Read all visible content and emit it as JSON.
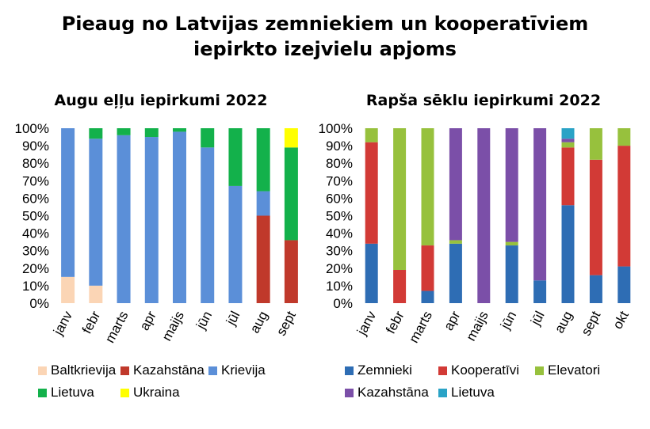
{
  "title_lines": [
    "Pieaug no Latvijas zemniekiem un kooperatīviem",
    "iepirkto izejvielu apjoms"
  ],
  "chart_data": [
    {
      "type": "bar",
      "stacked": true,
      "title": "Augu eļļu iepirkumi 2022",
      "categories": [
        "janv",
        "febr",
        "marts",
        "apr",
        "maijs",
        "jūn",
        "jūl",
        "aug",
        "sept"
      ],
      "yticks": [
        "0%",
        "10%",
        "20%",
        "30%",
        "40%",
        "50%",
        "60%",
        "70%",
        "80%",
        "90%",
        "100%"
      ],
      "ylim": [
        0,
        100
      ],
      "series": [
        {
          "name": "Baltkrievija",
          "color": "#fbd5b5",
          "values": [
            15,
            10,
            0,
            0,
            0,
            0,
            0,
            0,
            0
          ]
        },
        {
          "name": "Kazahstāna",
          "color": "#c0392b",
          "values": [
            0,
            0,
            0,
            0,
            0,
            0,
            0,
            50,
            36
          ]
        },
        {
          "name": "Krievija",
          "color": "#5b8fd8",
          "values": [
            85,
            84,
            96,
            95,
            98,
            89,
            67,
            14,
            0
          ]
        },
        {
          "name": "Lietuva",
          "color": "#13b14b",
          "values": [
            0,
            6,
            4,
            5,
            2,
            11,
            33,
            36,
            53
          ]
        },
        {
          "name": "Ukraina",
          "color": "#ffff00",
          "values": [
            0,
            0,
            0,
            0,
            0,
            0,
            0,
            0,
            11
          ]
        }
      ],
      "legend_rows": [
        [
          "Baltkrievija",
          "Kazahstāna",
          "Krievija"
        ],
        [
          "Lietuva",
          "Ukraina"
        ]
      ],
      "legend": "bottom"
    },
    {
      "type": "bar",
      "stacked": true,
      "title": "Rapša sēklu iepirkumi 2022",
      "categories": [
        "janv",
        "febr",
        "marts",
        "apr",
        "maijs",
        "jūn",
        "jūl",
        "aug",
        "sept",
        "okt"
      ],
      "yticks": [
        "0%",
        "10%",
        "20%",
        "30%",
        "40%",
        "50%",
        "60%",
        "70%",
        "80%",
        "90%",
        "100%"
      ],
      "ylim": [
        0,
        100
      ],
      "series": [
        {
          "name": "Zemnieki",
          "color": "#2e6db4",
          "values": [
            34,
            0,
            7,
            34,
            0,
            33,
            13,
            56,
            16,
            21
          ]
        },
        {
          "name": "Kooperatīvi",
          "color": "#d23a36",
          "values": [
            58,
            19,
            26,
            0,
            0,
            0,
            0,
            33,
            66,
            69
          ]
        },
        {
          "name": "Elevatori",
          "color": "#97c13d",
          "values": [
            8,
            81,
            67,
            2,
            0,
            2,
            0,
            3,
            18,
            10
          ]
        },
        {
          "name": "Kazahstāna",
          "color": "#7b4fa8",
          "values": [
            0,
            0,
            0,
            64,
            100,
            65,
            87,
            2,
            0,
            0
          ]
        },
        {
          "name": "Lietuva",
          "color": "#2aa3c6",
          "values": [
            0,
            0,
            0,
            0,
            0,
            0,
            0,
            6,
            0,
            0
          ]
        }
      ],
      "legend_rows": [
        [
          "Zemnieki",
          "Kooperatīvi",
          "Elevatori"
        ],
        [
          "Kazahstāna",
          "Lietuva"
        ]
      ],
      "legend": "bottom"
    }
  ]
}
